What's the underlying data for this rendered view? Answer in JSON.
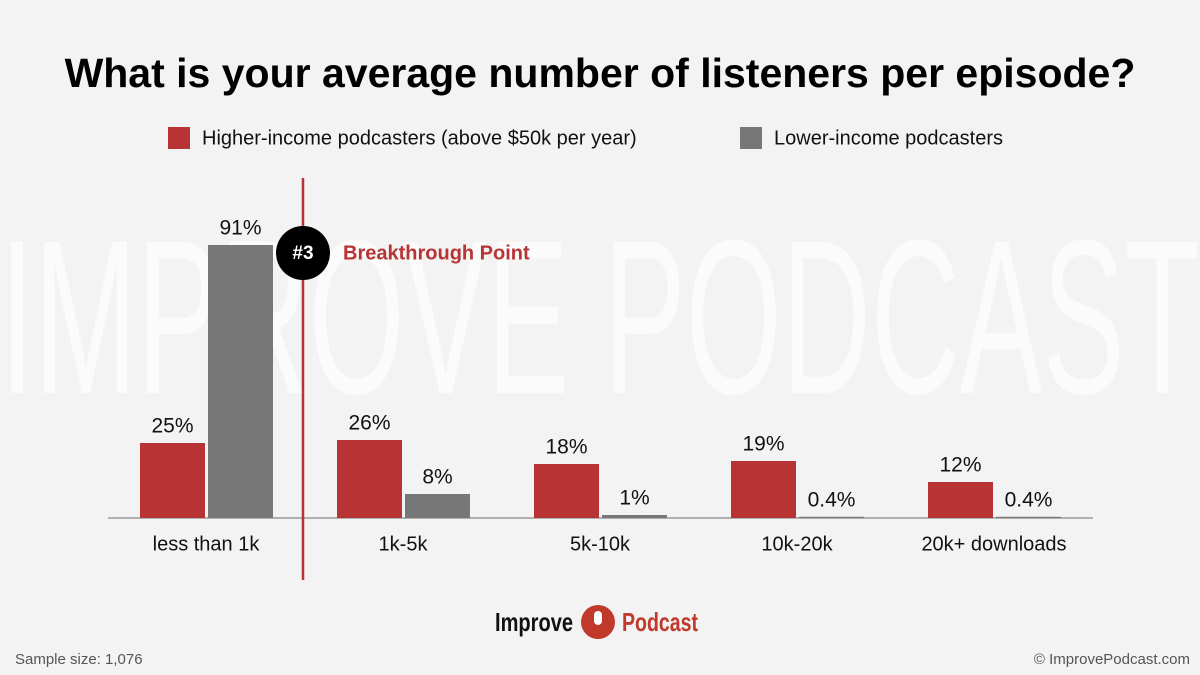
{
  "chart_data": {
    "type": "bar",
    "title": "What is your average number of listeners per episode?",
    "categories": [
      "less than 1k",
      "1k-5k",
      "5k-10k",
      "10k-20k",
      "20k+ downloads"
    ],
    "series": [
      {
        "name": "Higher-income podcasters (above $50k per year)",
        "color": "#b83333",
        "values": [
          25,
          26,
          18,
          19,
          12
        ],
        "value_labels": [
          "25%",
          "26%",
          "18%",
          "19%",
          "12%"
        ]
      },
      {
        "name": "Lower-income podcasters",
        "color": "#777777",
        "values": [
          91,
          8,
          1,
          0.4,
          0.4
        ],
        "value_labels": [
          "91%",
          "8%",
          "1%",
          "0.4%",
          "0.4%"
        ]
      }
    ],
    "annotation": {
      "badge": "#3",
      "text": "Breakthrough Point"
    },
    "watermark": "IMPROVE PODCAST",
    "logo": {
      "left": "Improve",
      "right": "Podcast"
    },
    "footer": {
      "left": "Sample size: 1,076",
      "right": "© ImprovePodcast.com"
    }
  }
}
